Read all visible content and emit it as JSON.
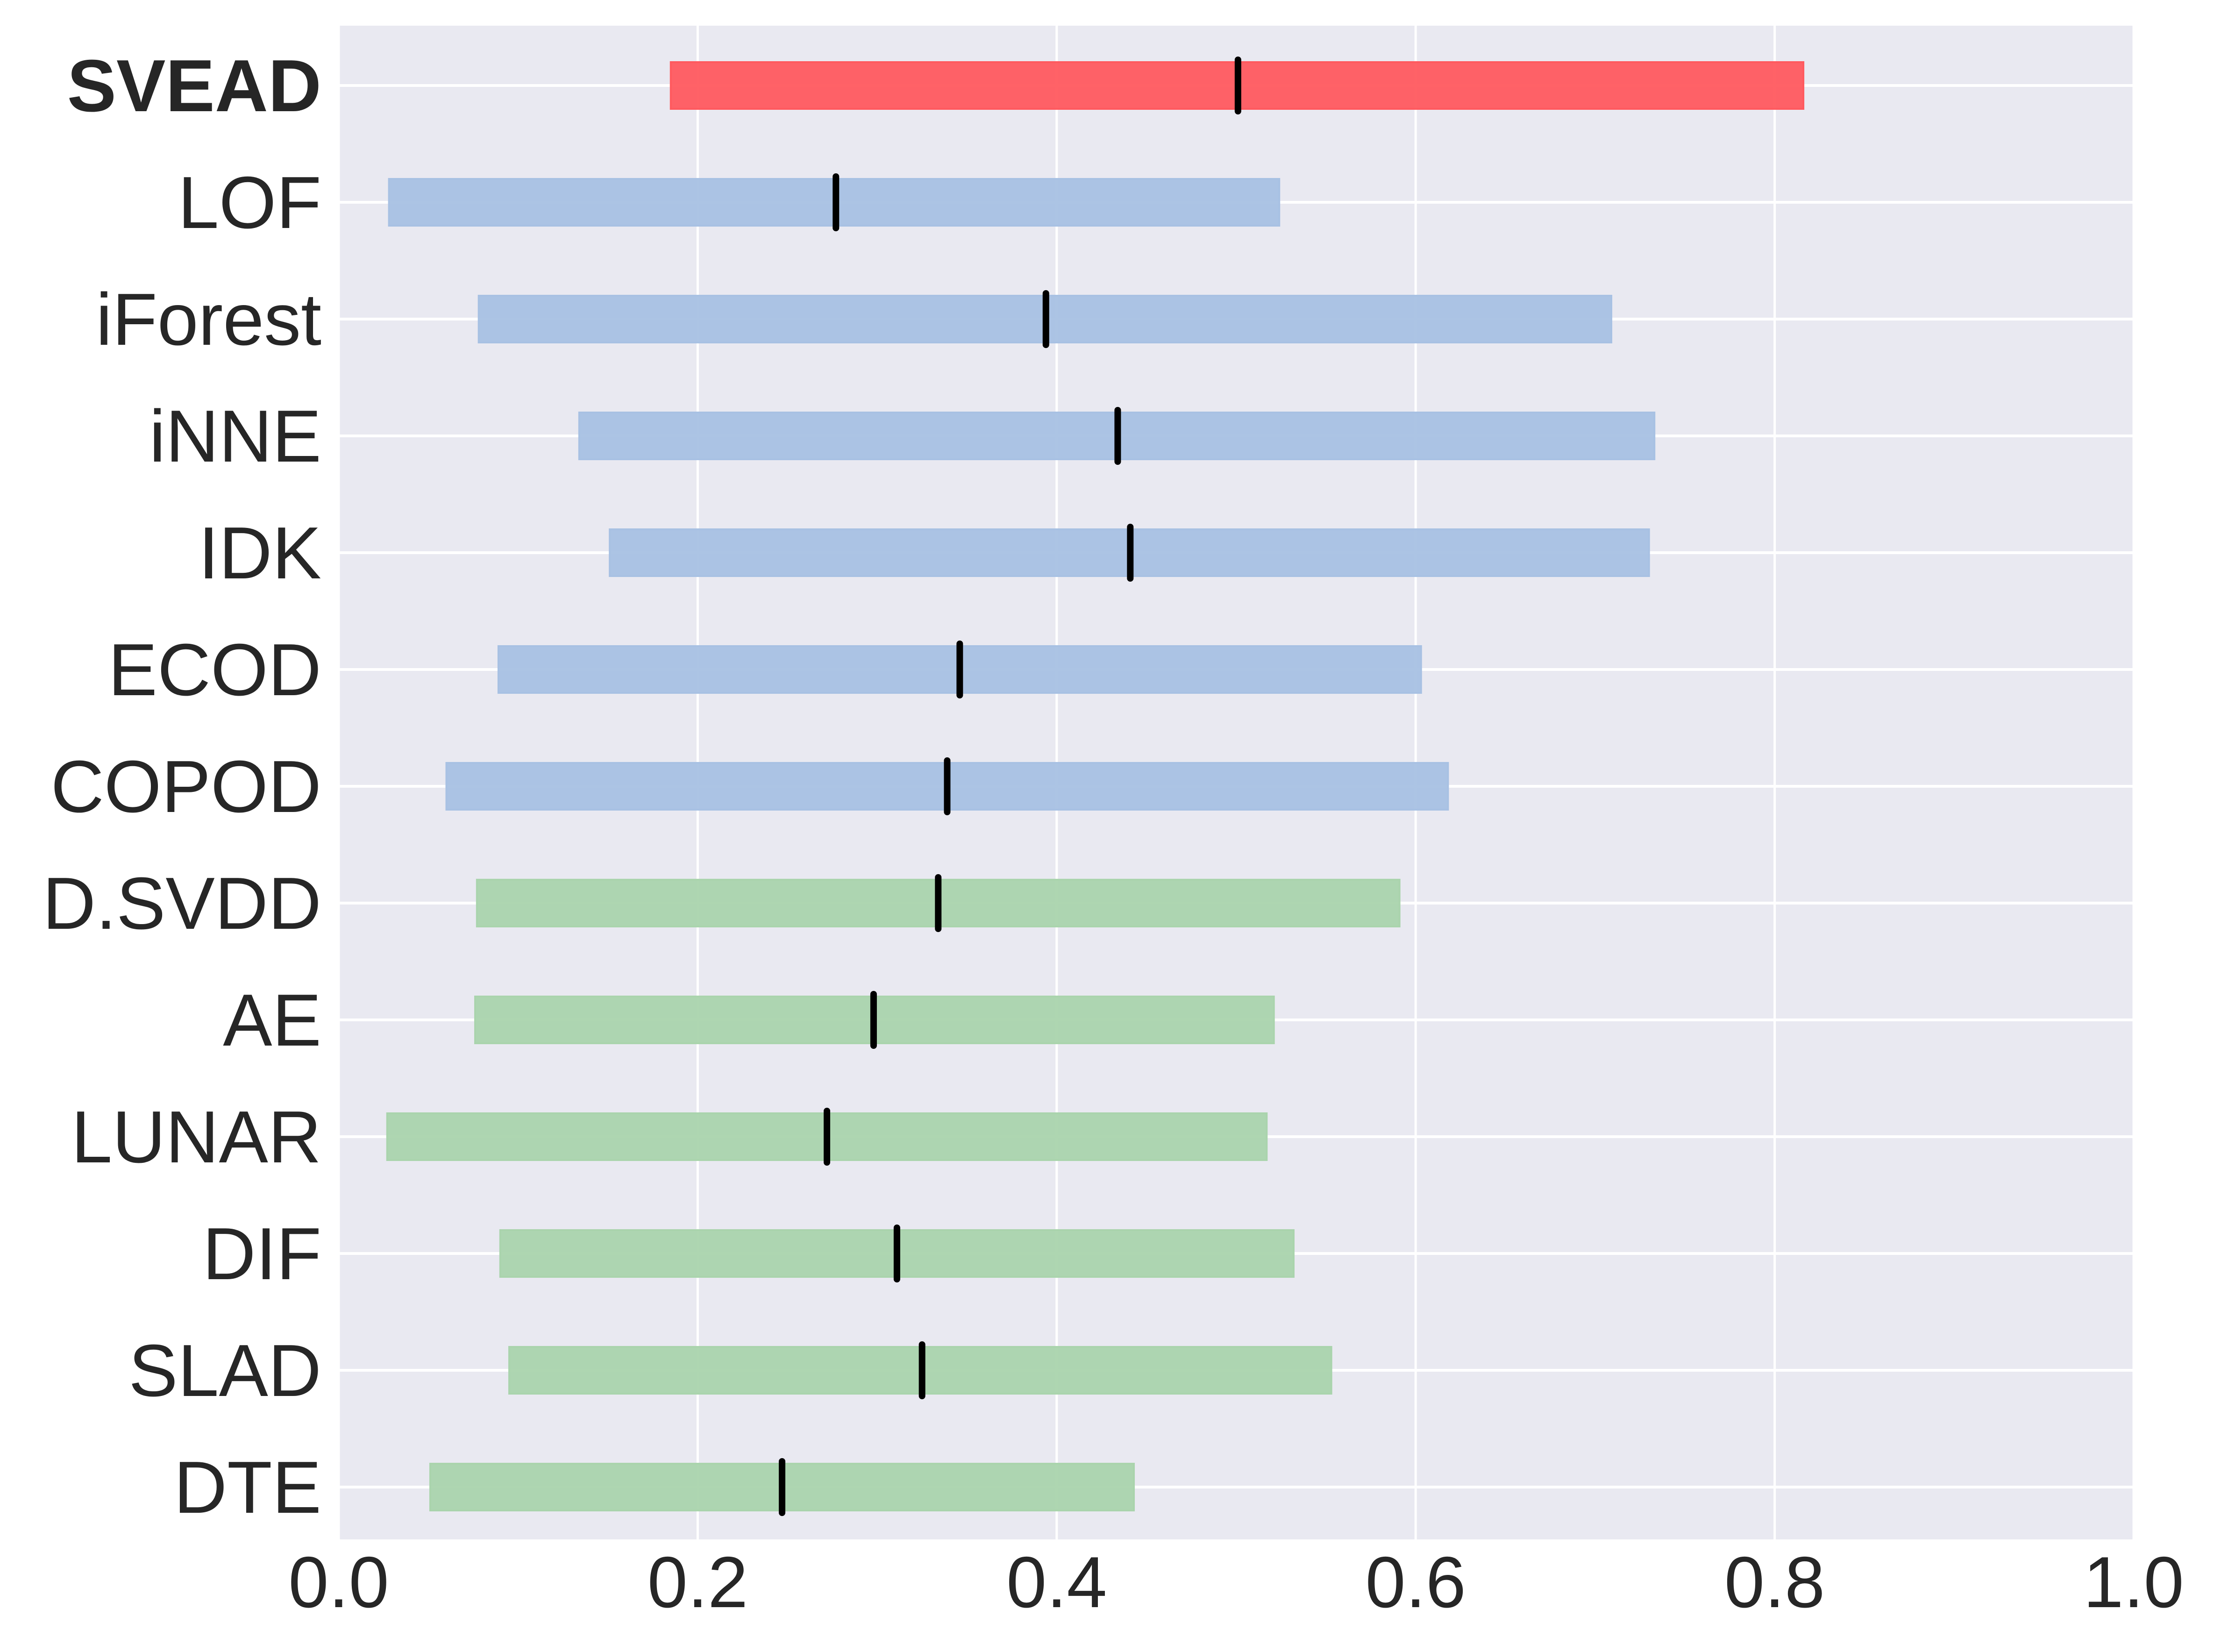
{
  "chart_data": {
    "type": "bar",
    "orientation": "horizontal",
    "chart_style": "range bars with median markers",
    "categories": [
      "SVEAD",
      "LOF",
      "iForest",
      "iNNE",
      "IDK",
      "ECOD",
      "COPOD",
      "D.SVDD",
      "AE",
      "LUNAR",
      "DIF",
      "SLAD",
      "DTE"
    ],
    "highlight_category": "SVEAD",
    "ranges": [
      {
        "category": "SVEAD",
        "low": 0.185,
        "high": 0.816,
        "median": 0.501,
        "group": "proposed"
      },
      {
        "category": "LOF",
        "low": 0.028,
        "high": 0.524,
        "median": 0.277,
        "group": "shallow"
      },
      {
        "category": "iForest",
        "low": 0.078,
        "high": 0.709,
        "median": 0.394,
        "group": "shallow"
      },
      {
        "category": "iNNE",
        "low": 0.134,
        "high": 0.733,
        "median": 0.434,
        "group": "shallow"
      },
      {
        "category": "IDK",
        "low": 0.151,
        "high": 0.73,
        "median": 0.441,
        "group": "shallow"
      },
      {
        "category": "ECOD",
        "low": 0.089,
        "high": 0.603,
        "median": 0.346,
        "group": "shallow"
      },
      {
        "category": "COPOD",
        "low": 0.06,
        "high": 0.618,
        "median": 0.339,
        "group": "shallow"
      },
      {
        "category": "D.SVDD",
        "low": 0.077,
        "high": 0.591,
        "median": 0.334,
        "group": "deep"
      },
      {
        "category": "AE",
        "low": 0.076,
        "high": 0.521,
        "median": 0.298,
        "group": "deep"
      },
      {
        "category": "LUNAR",
        "low": 0.027,
        "high": 0.517,
        "median": 0.272,
        "group": "deep"
      },
      {
        "category": "DIF",
        "low": 0.09,
        "high": 0.532,
        "median": 0.311,
        "group": "deep"
      },
      {
        "category": "SLAD",
        "low": 0.095,
        "high": 0.553,
        "median": 0.325,
        "group": "deep"
      },
      {
        "category": "DTE",
        "low": 0.051,
        "high": 0.443,
        "median": 0.247,
        "group": "deep"
      }
    ],
    "xlim": [
      0.0,
      1.0
    ],
    "x_ticks": [
      "0.0",
      "0.2",
      "0.4",
      "0.6",
      "0.8",
      "1.0"
    ],
    "title": "",
    "xlabel": "",
    "ylabel": "",
    "grid": true,
    "legend": false,
    "colors": {
      "proposed": "#ff5a5f",
      "shallow": "#a8c1e3",
      "deep": "#aad4ad",
      "median": "#000000",
      "background": "#e9e9f1",
      "grid": "#ffffff"
    }
  }
}
